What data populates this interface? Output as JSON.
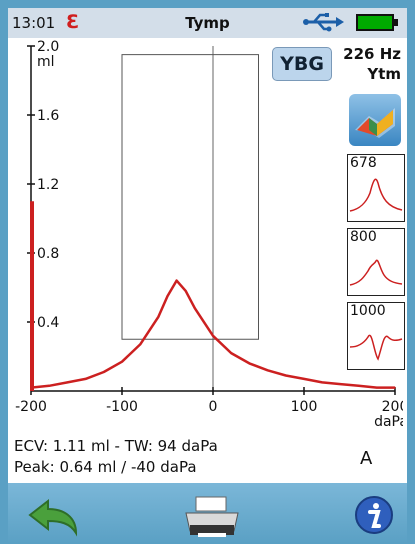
{
  "status": {
    "time": "13:01",
    "title": "Tymp"
  },
  "header": {
    "ybg_label": "YBG",
    "probe_freq": "226 Hz",
    "probe_mode": "Ytm"
  },
  "side_panel": {
    "tool_icon": "3d-surface-icon",
    "mini_plots": [
      {
        "label": "678"
      },
      {
        "label": "800"
      },
      {
        "label": "1000"
      }
    ]
  },
  "chart_data": {
    "type": "line",
    "yunit": "ml",
    "xunit": "daPa",
    "x_ticks": [
      "-200",
      "-100",
      "0",
      "100",
      "200"
    ],
    "y_ticks": [
      "0.4",
      "0.8",
      "1.2",
      "1.6",
      "2.0"
    ],
    "xlim": [
      -200,
      200
    ],
    "ylim": [
      0,
      2.0
    ],
    "series": [
      {
        "x": [
          -200,
          -180,
          -160,
          -140,
          -120,
          -100,
          -80,
          -60,
          -50,
          -40,
          -30,
          -20,
          0,
          20,
          40,
          60,
          80,
          100,
          120,
          140,
          160,
          180,
          200
        ],
        "y": [
          0.02,
          0.03,
          0.05,
          0.07,
          0.11,
          0.17,
          0.27,
          0.43,
          0.55,
          0.64,
          0.58,
          0.48,
          0.32,
          0.22,
          0.16,
          0.12,
          0.09,
          0.07,
          0.05,
          0.04,
          0.03,
          0.02,
          0.02
        ]
      }
    ],
    "ecv_bar_value": 1.1,
    "tolerance_box": {
      "x": [
        -100,
        50
      ],
      "y": [
        0.3,
        1.95
      ]
    }
  },
  "results": {
    "line1": "ECV: 1.11 ml - TW: 94 daPa",
    "line2": "Peak: 0.64 ml / -40 daPa",
    "ear_side": "A"
  },
  "toolbar": {
    "back_icon": "back-arrow-icon",
    "print_icon": "printer-icon",
    "info_icon": "info-icon"
  },
  "colors": {
    "curve": "#cc2020",
    "frame": "#5aa0c4"
  }
}
